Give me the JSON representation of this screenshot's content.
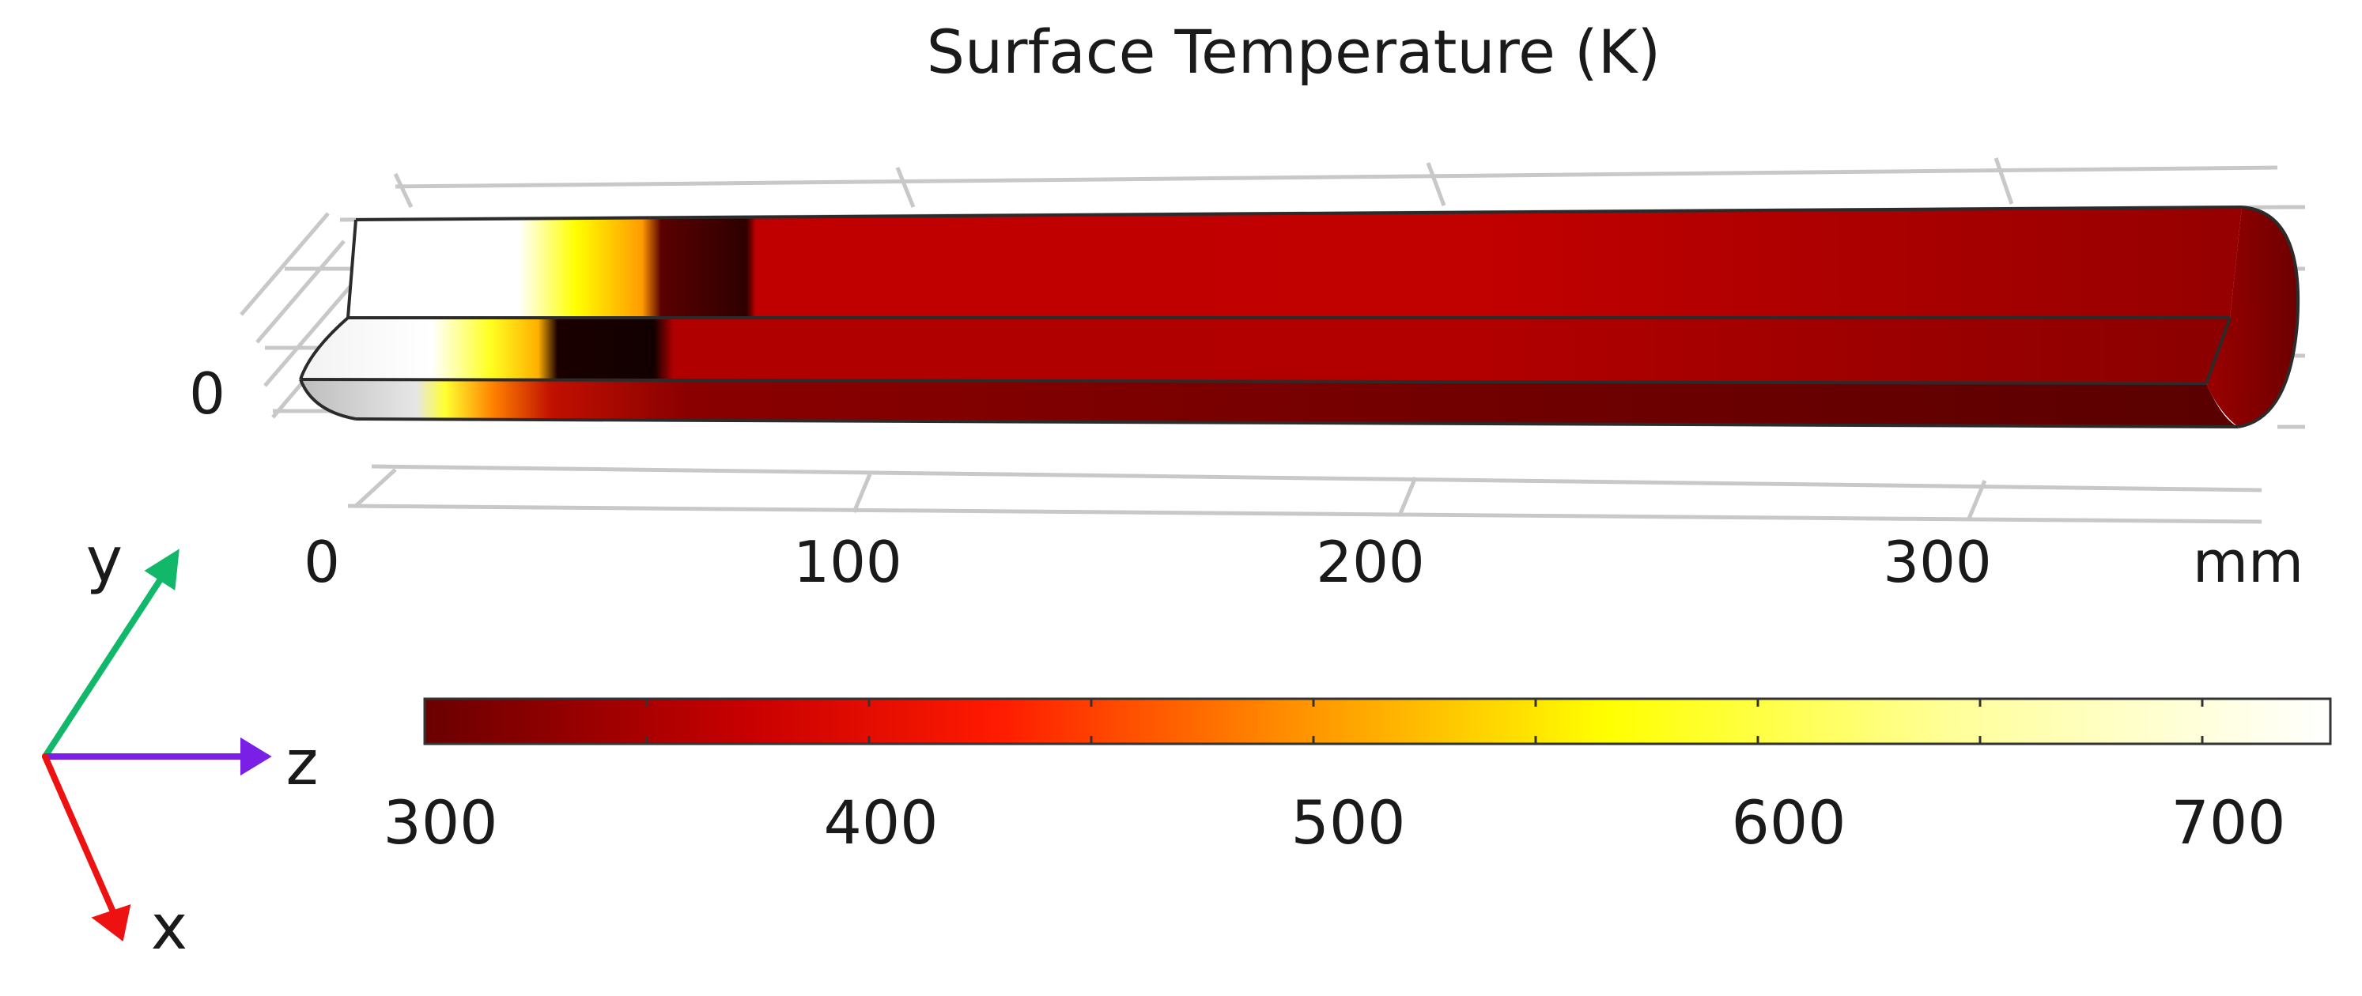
{
  "figure": {
    "title": "Surface Temperature (K)",
    "y_axis_tick": "0",
    "z_axis_ticks": [
      "0",
      "100",
      "200",
      "300"
    ],
    "z_axis_unit": "mm"
  },
  "colorbar": {
    "ticks": [
      "300",
      "400",
      "500",
      "600",
      "700"
    ],
    "stops": [
      "#6a0000",
      "#c80000",
      "#ff1a00",
      "#ff8c00",
      "#ffff00",
      "#ffff99",
      "#ffffff"
    ]
  },
  "triad": {
    "y_label": "y",
    "z_label": "z",
    "x_label": "x",
    "y_color": "#12b86a",
    "z_color": "#7a1fe6",
    "x_color": "#ee1111"
  }
}
